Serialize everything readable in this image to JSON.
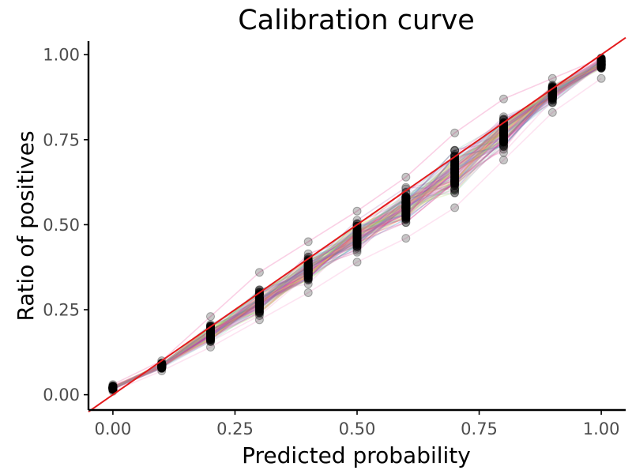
{
  "chart_data": {
    "type": "line",
    "title": "Calibration curve",
    "xlabel": "Predicted probability",
    "ylabel": "Ratio of positives",
    "xlim": [
      -0.05,
      1.05
    ],
    "ylim": [
      -0.045,
      1.04
    ],
    "x_ticks": [
      0.0,
      0.25,
      0.5,
      0.75,
      1.0
    ],
    "y_ticks": [
      0.0,
      0.25,
      0.5,
      0.75,
      1.0
    ],
    "x_tick_labels": [
      "0.00",
      "0.25",
      "0.50",
      "0.75",
      "1.00"
    ],
    "y_tick_labels": [
      "0.00",
      "0.25",
      "0.50",
      "0.75",
      "1.00"
    ],
    "grid": false,
    "legend": "none",
    "bins": [
      0.0,
      0.1,
      0.2,
      0.3,
      0.4,
      0.5,
      0.6,
      0.7,
      0.8,
      0.9,
      1.0
    ],
    "point_ranges": [
      {
        "x": 0.0,
        "min": 0.01,
        "max": 0.03
      },
      {
        "x": 0.1,
        "min": 0.07,
        "max": 0.1
      },
      {
        "x": 0.2,
        "min": 0.14,
        "max": 0.23
      },
      {
        "x": 0.3,
        "min": 0.22,
        "max": 0.36
      },
      {
        "x": 0.4,
        "min": 0.3,
        "max": 0.45
      },
      {
        "x": 0.5,
        "min": 0.39,
        "max": 0.54
      },
      {
        "x": 0.6,
        "min": 0.46,
        "max": 0.64
      },
      {
        "x": 0.7,
        "min": 0.55,
        "max": 0.77
      },
      {
        "x": 0.8,
        "min": 0.69,
        "max": 0.87
      },
      {
        "x": 0.9,
        "min": 0.83,
        "max": 0.93
      },
      {
        "x": 1.0,
        "min": 0.93,
        "max": 0.99
      }
    ],
    "series_mean": [
      0.02,
      0.085,
      0.18,
      0.275,
      0.37,
      0.465,
      0.555,
      0.65,
      0.765,
      0.885,
      0.975
    ],
    "n_series": 100,
    "reference_line": {
      "from": [
        -0.05,
        -0.05
      ],
      "to": [
        1.05,
        1.05
      ],
      "color": "#e41a1c"
    },
    "point_color": "#000000",
    "series_palette": [
      "#f781bf",
      "#e7298a",
      "#984ea3",
      "#377eb8",
      "#66c2a5",
      "#a6d854",
      "#ffd92f",
      "#8da0cb",
      "#e78ac3",
      "#c51b7d"
    ]
  }
}
